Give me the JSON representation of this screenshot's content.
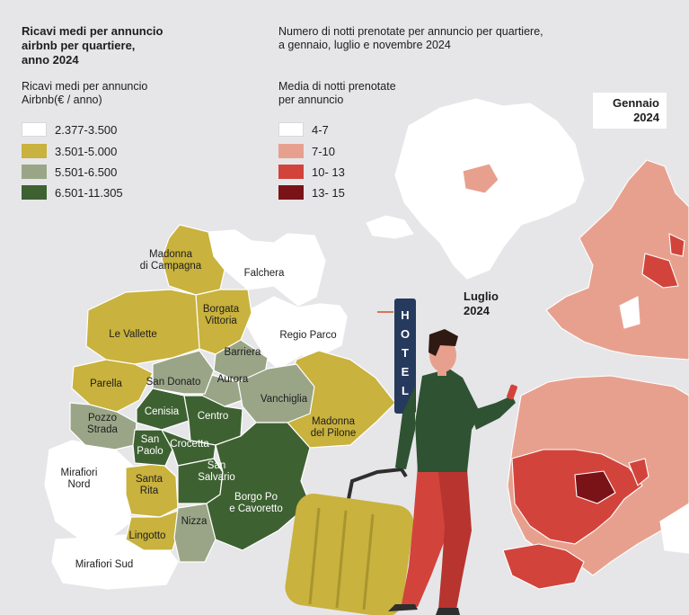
{
  "left_panel": {
    "title": "Ricavi medi per annuncio\nairbnb per quartiere,\nanno 2024",
    "legend_title": "Ricavi medi per annuncio\nAirbnb(€ / anno)",
    "legend": [
      {
        "label": "2.377-3.500",
        "color": "#ffffff"
      },
      {
        "label": "3.501-5.000",
        "color": "#c9b23d"
      },
      {
        "label": "5.501-6.500",
        "color": "#9aa587"
      },
      {
        "label": "6.501-11.305",
        "color": "#3e6132"
      }
    ],
    "districts": [
      {
        "name": "Madonna\ndi Campagna",
        "band": "3.501-5.000"
      },
      {
        "name": "Falchera",
        "band": "2.377-3.500"
      },
      {
        "name": "Borgata\nVittoria",
        "band": "3.501-5.000"
      },
      {
        "name": "Le Vallette",
        "band": "3.501-5.000"
      },
      {
        "name": "Regio Parco",
        "band": "2.377-3.500"
      },
      {
        "name": "Barriera",
        "band": "5.501-6.500"
      },
      {
        "name": "Parella",
        "band": "3.501-5.000"
      },
      {
        "name": "San Donato",
        "band": "5.501-6.500"
      },
      {
        "name": "Aurora",
        "band": "5.501-6.500"
      },
      {
        "name": "Vanchiglia",
        "band": "5.501-6.500"
      },
      {
        "name": "Cenisia",
        "band": "6.501-11.305"
      },
      {
        "name": "Centro",
        "band": "6.501-11.305"
      },
      {
        "name": "Pozzo\nStrada",
        "band": "5.501-6.500"
      },
      {
        "name": "Madonna\ndel Pilone",
        "band": "3.501-5.000"
      },
      {
        "name": "San\nPaolo",
        "band": "6.501-11.305"
      },
      {
        "name": "Crocetta",
        "band": "6.501-11.305"
      },
      {
        "name": "San\nSalvario",
        "band": "6.501-11.305"
      },
      {
        "name": "Mirafiori\nNord",
        "band": "2.377-3.500"
      },
      {
        "name": "Santa\nRita",
        "band": "3.501-5.000"
      },
      {
        "name": "Borgo Po\ne Cavoretto",
        "band": "6.501-11.305"
      },
      {
        "name": "Nizza",
        "band": "5.501-6.500"
      },
      {
        "name": "Lingotto",
        "band": "3.501-5.000"
      },
      {
        "name": "Mirafiori Sud",
        "band": "2.377-3.500"
      }
    ]
  },
  "right_panel": {
    "title": "Numero di notti prenotate per annuncio per quartiere,\na gennaio, luglio e novembre 2024",
    "legend_title": "Media di notti prenotate\nper annuncio",
    "legend": [
      {
        "label": "4-7",
        "color": "#ffffff"
      },
      {
        "label": "7-10",
        "color": "#e8a08e"
      },
      {
        "label": "10- 13",
        "color": "#d2443b"
      },
      {
        "label": "13- 15",
        "color": "#7a1318"
      }
    ],
    "maps": [
      {
        "label": "Gennaio\n2024"
      },
      {
        "label": "Luglio\n2024"
      }
    ]
  },
  "illustration": {
    "hotel_sign": "HOTEL"
  }
}
